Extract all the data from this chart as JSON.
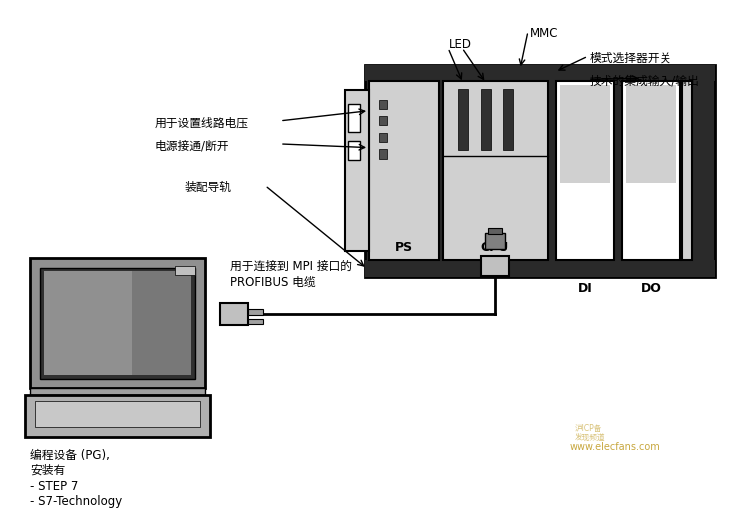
{
  "bg_color": "#ffffff",
  "line_color": "#000000",
  "gray_light": "#d0d0d0",
  "gray_mid": "#b0b0b0",
  "gray_dark": "#404040",
  "gray_module": "#c8c8c8",
  "white": "#ffffff",
  "annotation_texts": {
    "MMC": "MMC",
    "mode_switch": "模式选择器开关",
    "integrated_io": "技术的集成输入/输出",
    "LED": "LED",
    "voltage": "用于设置线路电压",
    "power": "电源接通/断开",
    "din_rail": "装配导轨",
    "mpi_cable": "用于连接到 MPI 接口的",
    "mpi_cable2": "PROFIBUS 电缆",
    "pg_label1": "编程设备 (PG),",
    "pg_label2": "安装有",
    "pg_label3": "- STEP 7",
    "pg_label4": "- S7-Technology"
  },
  "DI_label": "DI",
  "DO_label": "DO",
  "PS_label": "PS",
  "CPU_label": "CPU",
  "watermark": "www.elecfans.com"
}
